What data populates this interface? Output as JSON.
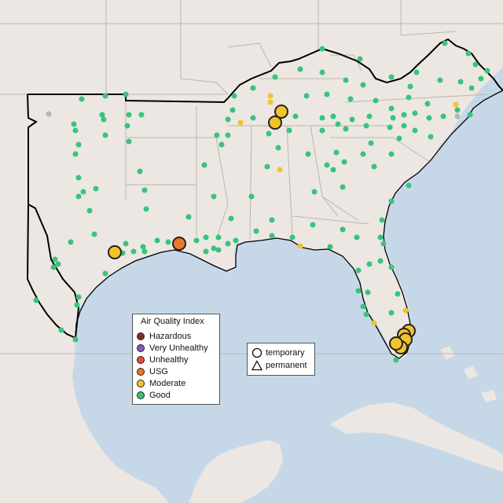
{
  "legend": {
    "title": "Air Quality Index",
    "categories": [
      {
        "label": "Hazardous",
        "color": "#7e2f2b"
      },
      {
        "label": "Very Unhealthy",
        "color": "#8b57b3"
      },
      {
        "label": "Unhealthy",
        "color": "#e64b35"
      },
      {
        "label": "USG",
        "color": "#e9782a"
      },
      {
        "label": "Moderate",
        "color": "#f3c32b"
      },
      {
        "label": "Good",
        "color": "#37c47b"
      }
    ],
    "types": [
      {
        "label": "temporary",
        "symbol": "circle"
      },
      {
        "label": "permanent",
        "symbol": "triangle"
      }
    ]
  },
  "colors": {
    "water": "#c6d8e8",
    "land": "#ece7e2",
    "region_border": "#000000",
    "state_border": "#bdb5b0",
    "no_data": "#b5b5b5"
  }
}
